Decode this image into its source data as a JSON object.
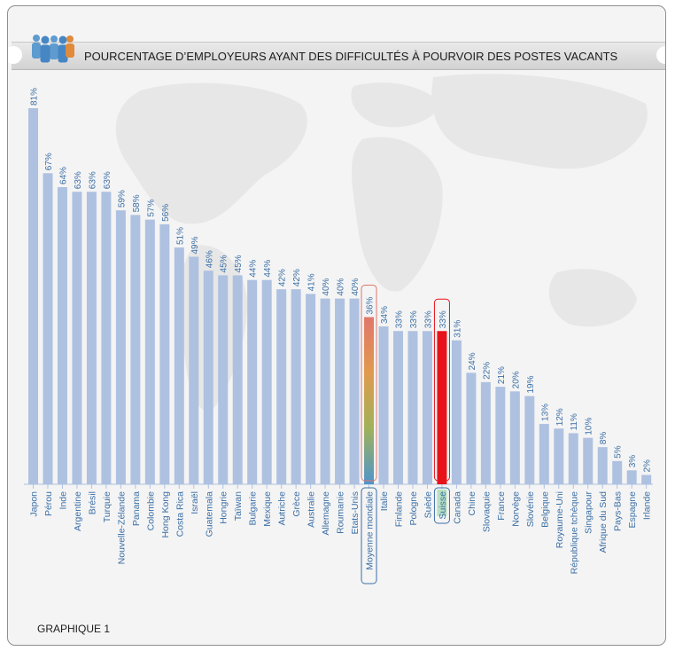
{
  "chart_title": "POURCENTAGE D’EMPLOYEURS AYANT DES DIFFICULTÉS À POURVOIR DES POSTES VACANTS",
  "caption": "GRAPHIQUE 1",
  "colors": {
    "bar": "#aec1e0",
    "label": "#3b6fa6",
    "highlight_bar": "#e8121a",
    "highlight_box": "#3b6fa6",
    "world_avg_gradient": [
      "#e0776c",
      "#e09a4e",
      "#9fb25a",
      "#4f94cc"
    ]
  },
  "icons": [
    "people-group-icon",
    "world-map-background"
  ],
  "chart_data": {
    "type": "bar",
    "title": "POURCENTAGE D’EMPLOYEURS AYANT DES DIFFICULTÉS À POURVOIR DES POSTES VACANTS",
    "xlabel": "",
    "ylabel": "",
    "ylim": [
      0,
      81
    ],
    "unit": "%",
    "categories": [
      "Japon",
      "Pérou",
      "Inde",
      "Argentine",
      "Brésil",
      "Turquie",
      "Nouvelle-Zélande",
      "Panama",
      "Colombie",
      "Hong Kong",
      "Costa Rica",
      "Israël",
      "Guatemala",
      "Hongrie",
      "Taïwan",
      "Bulgarie",
      "Mexique",
      "Autriche",
      "Grèce",
      "Australie",
      "Allemagne",
      "Roumanie",
      "Etats-Unis",
      "Moyenne mondiale",
      "Italie",
      "Finlande",
      "Pologne",
      "Suède",
      "Suisse",
      "Canada",
      "Chine",
      "Slovaquie",
      "France",
      "Norvège",
      "Slovénie",
      "Belgique",
      "Royaume-Uni",
      "République tchèque",
      "Singapour",
      "Afrique du Sud",
      "Pays-Bas",
      "Espagne",
      "Irlande"
    ],
    "values": [
      81,
      67,
      64,
      63,
      63,
      63,
      59,
      58,
      57,
      56,
      51,
      49,
      46,
      45,
      45,
      44,
      44,
      42,
      42,
      41,
      40,
      40,
      40,
      36,
      34,
      33,
      33,
      33,
      33,
      31,
      24,
      22,
      21,
      20,
      19,
      13,
      12,
      11,
      10,
      8,
      5,
      3,
      2
    ],
    "value_labels": [
      "81%",
      "67%",
      "64%",
      "63%",
      "63%",
      "63%",
      "59%",
      "58%",
      "57%",
      "56%",
      "51%",
      "49%",
      "46%",
      "45%",
      "45%",
      "44%",
      "44%",
      "42%",
      "42%",
      "41%",
      "40%",
      "40%",
      "40%",
      "36%",
      "34%",
      "33%",
      "33%",
      "33%",
      "33%",
      "31%",
      "24%",
      "22%",
      "21%",
      "20%",
      "19%",
      "13%",
      "12%",
      "11%",
      "10%",
      "8%",
      "5%",
      "3%",
      "2%"
    ],
    "highlighted": [
      "Moyenne mondiale",
      "Suisse"
    ],
    "grid": false,
    "legend": "none"
  }
}
